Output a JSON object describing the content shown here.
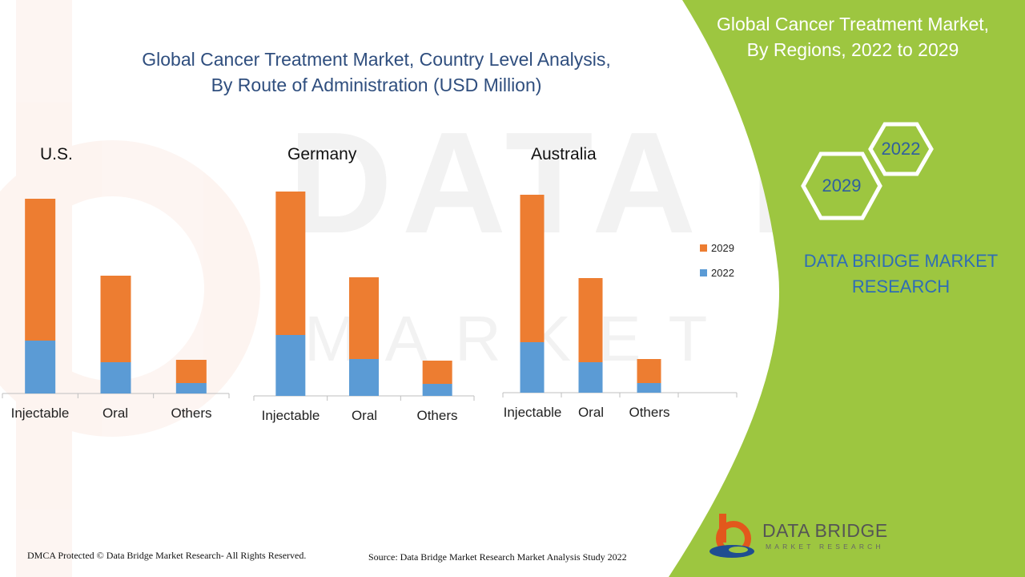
{
  "main_title": {
    "line1": "Global Cancer Treatment Market, Country Level Analysis,",
    "line2": "By Route of Administration (USD Million)"
  },
  "panel": {
    "title_line1": "Global Cancer Treatment Market,",
    "title_line2": "By Regions, 2022 to 2029",
    "hex_year_a": "2022",
    "hex_year_b": "2029",
    "brand_line1": "DATA BRIDGE MARKET",
    "brand_line2": "RESEARCH"
  },
  "logo": {
    "name": "DATA BRIDGE",
    "sub": "MARKET RESEARCH"
  },
  "footer": {
    "copyright": "DMCA Protected © Data Bridge Market Research- All Rights Reserved.",
    "source": "Source: Data Bridge Market Research Market Analysis Study 2022"
  },
  "colors": {
    "series_2022": "#5b9bd5",
    "series_2029": "#ed7d31",
    "panel_green": "#9dc640",
    "title_blue": "#2f4e7e",
    "brand_blue": "#2f6db5"
  },
  "legend": [
    {
      "name": "2029",
      "color": "#ed7d31"
    },
    {
      "name": "2022",
      "color": "#5b9bd5"
    }
  ],
  "chart_data": [
    {
      "type": "bar",
      "stacked": true,
      "title": "U.S.",
      "categories": [
        "Injectable",
        "Oral",
        "Others"
      ],
      "series": [
        {
          "name": "2022",
          "values": [
            66,
            39,
            13
          ]
        },
        {
          "name": "2029",
          "values": [
            177,
            108,
            29
          ]
        }
      ],
      "ylim": [
        0,
        243
      ],
      "grid": false,
      "legend": "right"
    },
    {
      "type": "bar",
      "stacked": true,
      "title": "Germany",
      "categories": [
        "Injectable",
        "Oral",
        "Others"
      ],
      "series": [
        {
          "name": "2022",
          "values": [
            76,
            46,
            15
          ]
        },
        {
          "name": "2029",
          "values": [
            179,
            102,
            29
          ]
        }
      ],
      "ylim": [
        0,
        255
      ],
      "grid": false,
      "legend": "right"
    },
    {
      "type": "bar",
      "stacked": true,
      "title": "Australia",
      "categories": [
        "Injectable",
        "Oral",
        "Others"
      ],
      "series": [
        {
          "name": "2022",
          "values": [
            63,
            38,
            12
          ]
        },
        {
          "name": "2029",
          "values": [
            184,
            105,
            30
          ]
        }
      ],
      "ylim": [
        0,
        247
      ],
      "grid": false,
      "legend": "right"
    }
  ]
}
